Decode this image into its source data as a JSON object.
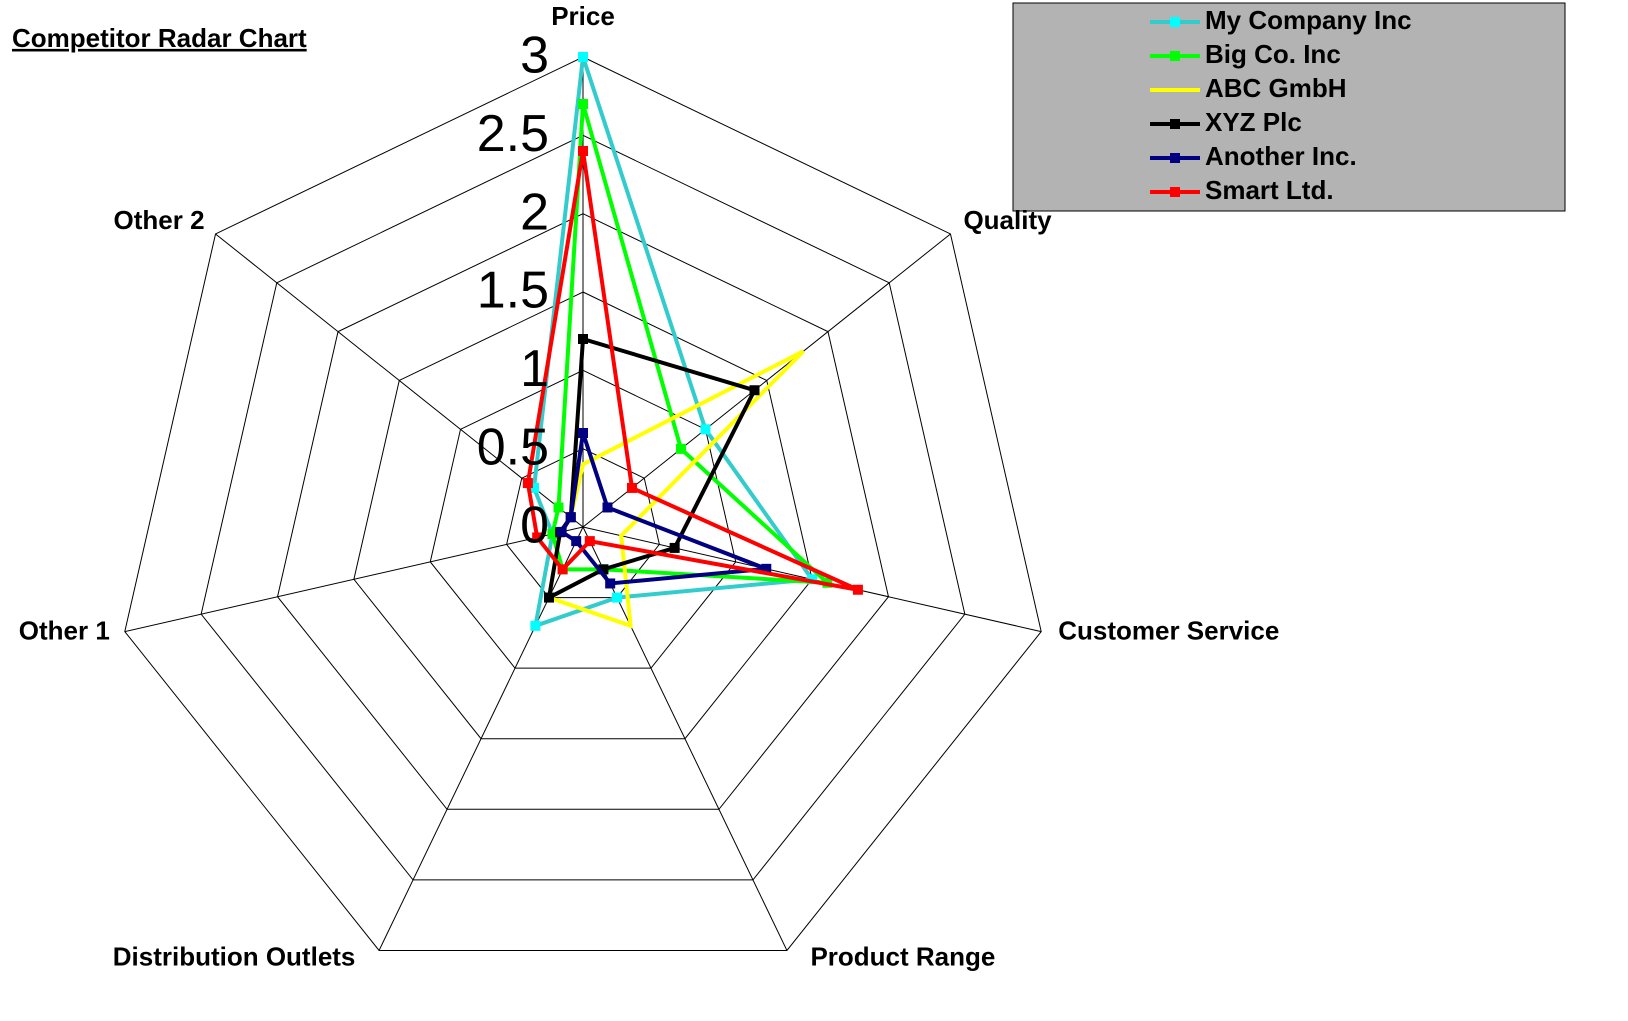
{
  "chart_data": {
    "type": "radar",
    "title": "Competitor Radar Chart",
    "categories": [
      "Price",
      "Quality",
      "Customer Service",
      "Product Range",
      "Distribution Outlets",
      "Other 1",
      "Other 2"
    ],
    "ylim": [
      0,
      3
    ],
    "yticks": [
      0,
      0.5,
      1,
      1.5,
      2,
      2.5,
      3
    ],
    "grid": true,
    "legend": "top-right",
    "series": [
      {
        "name": "My Company Inc",
        "color": "#33cccc",
        "marker_color": "#00ffff",
        "marker": true,
        "values": [
          3,
          1.0,
          1.5,
          0.5,
          0.7,
          0.2,
          0.4
        ]
      },
      {
        "name": "Big Co. Inc",
        "color": "#00ff00",
        "marker_color": "#00ff00",
        "marker": true,
        "values": [
          2.7,
          0.8,
          1.6,
          0.3,
          0.3,
          0.2,
          0.2
        ]
      },
      {
        "name": "ABC GmbH",
        "color": "#ffff00",
        "marker_color": "#ffff00",
        "marker": false,
        "values": [
          0.4,
          1.8,
          0.25,
          0.7,
          0.5,
          0.15,
          0.1
        ]
      },
      {
        "name": "XYZ Plc",
        "color": "#000000",
        "marker_color": "#000000",
        "marker": true,
        "values": [
          1.2,
          1.4,
          0.6,
          0.3,
          0.5,
          0.15,
          0.1
        ]
      },
      {
        "name": "Another Inc.",
        "color": "#000080",
        "marker_color": "#000080",
        "marker": true,
        "values": [
          0.6,
          0.2,
          1.2,
          0.4,
          0.1,
          0.14,
          0.1
        ]
      },
      {
        "name": "Smart Ltd.",
        "color": "#ff0000",
        "marker_color": "#ff0000",
        "marker": true,
        "values": [
          2.4,
          0.4,
          1.8,
          0.1,
          0.3,
          0.3,
          0.45
        ]
      }
    ]
  }
}
